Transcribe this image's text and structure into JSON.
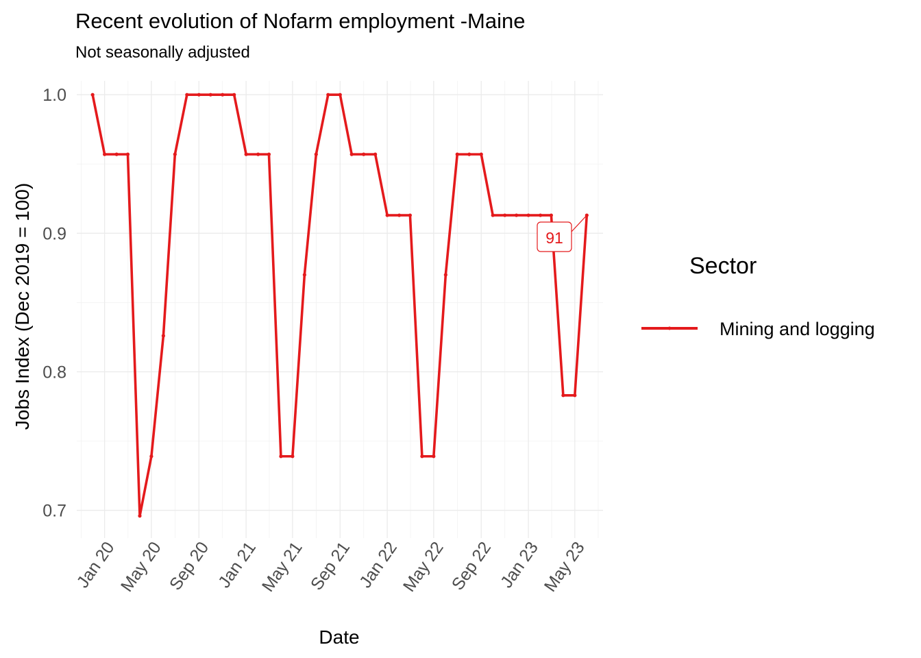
{
  "chart_data": {
    "type": "line",
    "title": "Recent evolution of Nofarm employment -Maine",
    "subtitle": "Not seasonally adjusted",
    "xlabel": "Date",
    "ylabel": "Jobs Index (Dec 2019 = 100)",
    "x_tick_labels": [
      "Jan 20",
      "May 20",
      "Sep 20",
      "Jan 21",
      "May 21",
      "Sep 21",
      "Jan 22",
      "May 22",
      "Sep 22",
      "Jan 23",
      "May 23"
    ],
    "y_tick_labels": [
      "0.7",
      "0.8",
      "0.9",
      "1.0"
    ],
    "ylim": [
      0.68,
      1.01
    ],
    "xlim": [
      "2019-10-21",
      "2023-07-13"
    ],
    "grid": true,
    "legend": {
      "title": "Sector",
      "position": "right"
    },
    "series": [
      {
        "name": "Mining and logging",
        "color": "#e41a1c",
        "x": [
          "2019-12",
          "2020-01",
          "2020-02",
          "2020-03",
          "2020-04",
          "2020-05",
          "2020-06",
          "2020-07",
          "2020-08",
          "2020-09",
          "2020-10",
          "2020-11",
          "2020-12",
          "2021-01",
          "2021-02",
          "2021-03",
          "2021-04",
          "2021-05",
          "2021-06",
          "2021-07",
          "2021-08",
          "2021-09",
          "2021-10",
          "2021-11",
          "2021-12",
          "2022-01",
          "2022-02",
          "2022-03",
          "2022-04",
          "2022-05",
          "2022-06",
          "2022-07",
          "2022-08",
          "2022-09",
          "2022-10",
          "2022-11",
          "2022-12",
          "2023-01",
          "2023-02",
          "2023-03",
          "2023-04",
          "2023-05",
          "2023-06"
        ],
        "values": [
          1.0,
          0.957,
          0.957,
          0.957,
          0.696,
          0.739,
          0.826,
          0.957,
          1.0,
          1.0,
          1.0,
          1.0,
          1.0,
          0.957,
          0.957,
          0.957,
          0.739,
          0.739,
          0.87,
          0.957,
          1.0,
          1.0,
          0.957,
          0.957,
          0.957,
          0.913,
          0.913,
          0.913,
          0.739,
          0.739,
          0.87,
          0.957,
          0.957,
          0.957,
          0.913,
          0.913,
          0.913,
          0.913,
          0.913,
          0.913,
          0.783,
          0.783,
          0.913
        ]
      }
    ],
    "annotation": {
      "text": "91",
      "x": "2023-06"
    }
  }
}
